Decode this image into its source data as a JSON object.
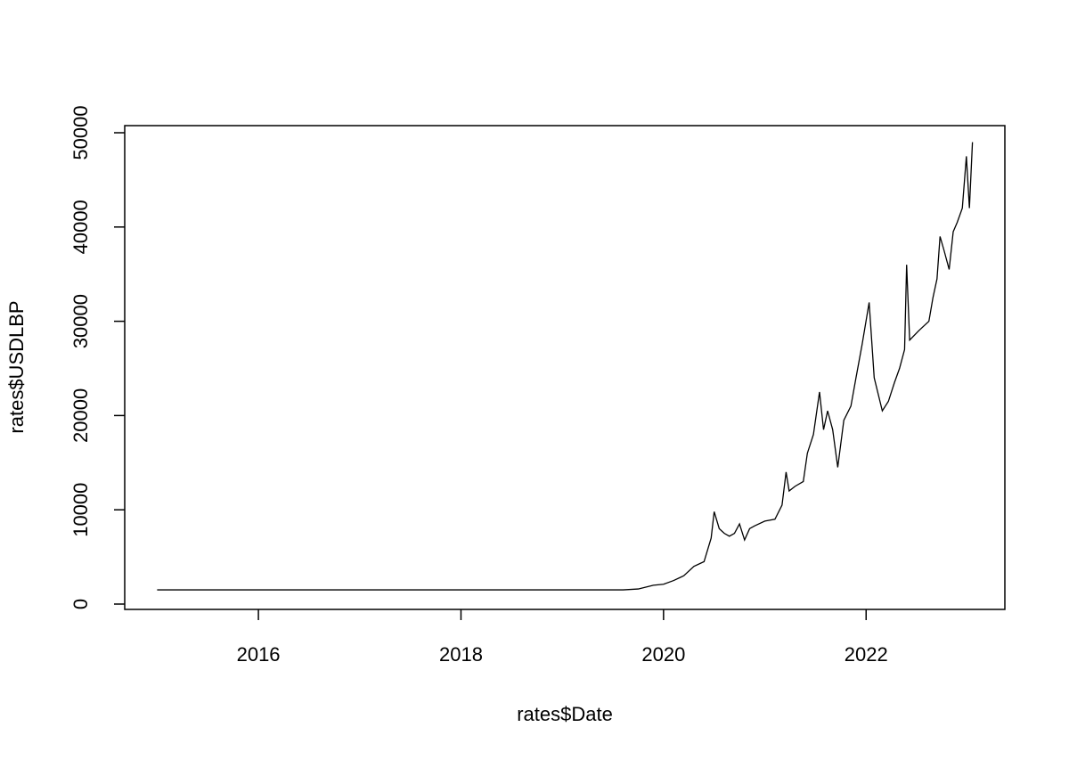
{
  "chart_data": {
    "type": "line",
    "xlabel": "rates$Date",
    "ylabel": "rates$USDLBP",
    "x": [
      2015.0,
      2019.6,
      2019.75,
      2019.9,
      2020.0,
      2020.1,
      2020.2,
      2020.3,
      2020.4,
      2020.47,
      2020.5,
      2020.55,
      2020.6,
      2020.65,
      2020.7,
      2020.75,
      2020.8,
      2020.85,
      2020.9,
      2021.0,
      2021.1,
      2021.17,
      2021.21,
      2021.24,
      2021.3,
      2021.38,
      2021.42,
      2021.48,
      2021.54,
      2021.58,
      2021.62,
      2021.67,
      2021.72,
      2021.78,
      2021.85,
      2021.9,
      2021.96,
      2022.03,
      2022.08,
      2022.16,
      2022.22,
      2022.28,
      2022.33,
      2022.38,
      2022.4,
      2022.43,
      2022.52,
      2022.62,
      2022.66,
      2022.7,
      2022.73,
      2022.77,
      2022.82,
      2022.86,
      2022.9,
      2022.95,
      2022.99,
      2023.02,
      2023.05
    ],
    "values": [
      1507.5,
      1507.5,
      1600,
      2000,
      2100,
      2500,
      3000,
      4000,
      4500,
      7000,
      9800,
      8000,
      7500,
      7200,
      7500,
      8500,
      6800,
      8000,
      8300,
      8800,
      9000,
      10500,
      14000,
      12000,
      12500,
      13000,
      16000,
      18000,
      22500,
      18500,
      20500,
      18500,
      14500,
      19500,
      21000,
      24000,
      27500,
      32000,
      24000,
      20500,
      21500,
      23500,
      25000,
      27000,
      36000,
      28000,
      29000,
      30000,
      32500,
      34500,
      39000,
      37500,
      35500,
      39500,
      40500,
      42000,
      47500,
      42000,
      49000
    ],
    "color": "#000000",
    "xlim": [
      2014.68,
      2023.37
    ],
    "xticks": [
      2016,
      2018,
      2020,
      2022
    ],
    "ylim": [
      -567,
      50756
    ],
    "yticks": [
      0,
      10000,
      20000,
      30000,
      40000,
      50000
    ]
  }
}
